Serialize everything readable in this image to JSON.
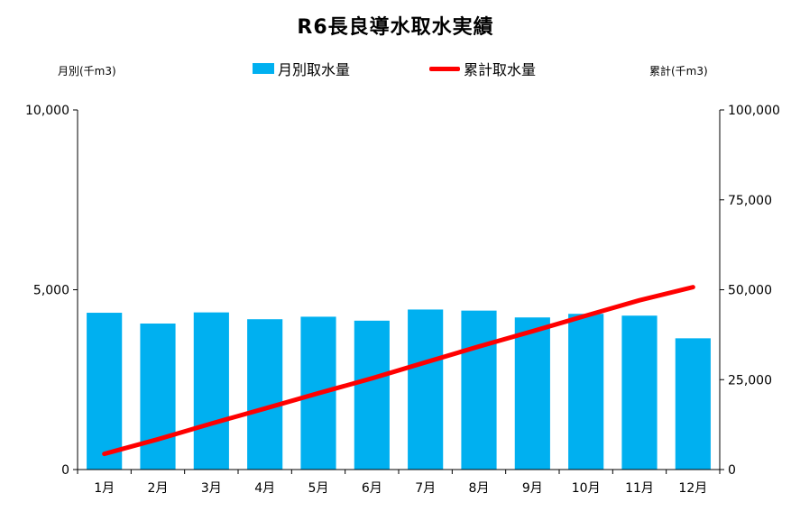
{
  "chart_data": {
    "type": "bar",
    "title": "R6長良導水取水実績",
    "categories": [
      "1月",
      "2月",
      "3月",
      "4月",
      "5月",
      "6月",
      "7月",
      "8月",
      "9月",
      "10月",
      "11月",
      "12月"
    ],
    "series": [
      {
        "name": "月別取水量",
        "type": "bar",
        "axis": "left",
        "color": "#00B0F0",
        "values": [
          4360,
          4060,
          4370,
          4180,
          4250,
          4140,
          4450,
          4420,
          4230,
          4330,
          4280,
          3650
        ]
      },
      {
        "name": "累計取水量",
        "type": "line",
        "axis": "right",
        "color": "#FF0000",
        "values": [
          4360,
          8420,
          12790,
          16970,
          21220,
          25360,
          29810,
          34230,
          38460,
          42790,
          47070,
          50720
        ]
      }
    ],
    "y_left": {
      "label": "月別(千m3)",
      "min": 0,
      "max": 10000,
      "ticks": [
        0,
        5000,
        10000
      ],
      "tick_labels": [
        "0",
        "5,000",
        "10,000"
      ]
    },
    "y_right": {
      "label": "累計(千m3)",
      "min": 0,
      "max": 100000,
      "ticks": [
        0,
        25000,
        50000,
        75000,
        100000
      ],
      "tick_labels": [
        "0",
        "25,000",
        "50,000",
        "75,000",
        "100,000"
      ]
    },
    "grid": false,
    "legend_position": "top-center"
  }
}
